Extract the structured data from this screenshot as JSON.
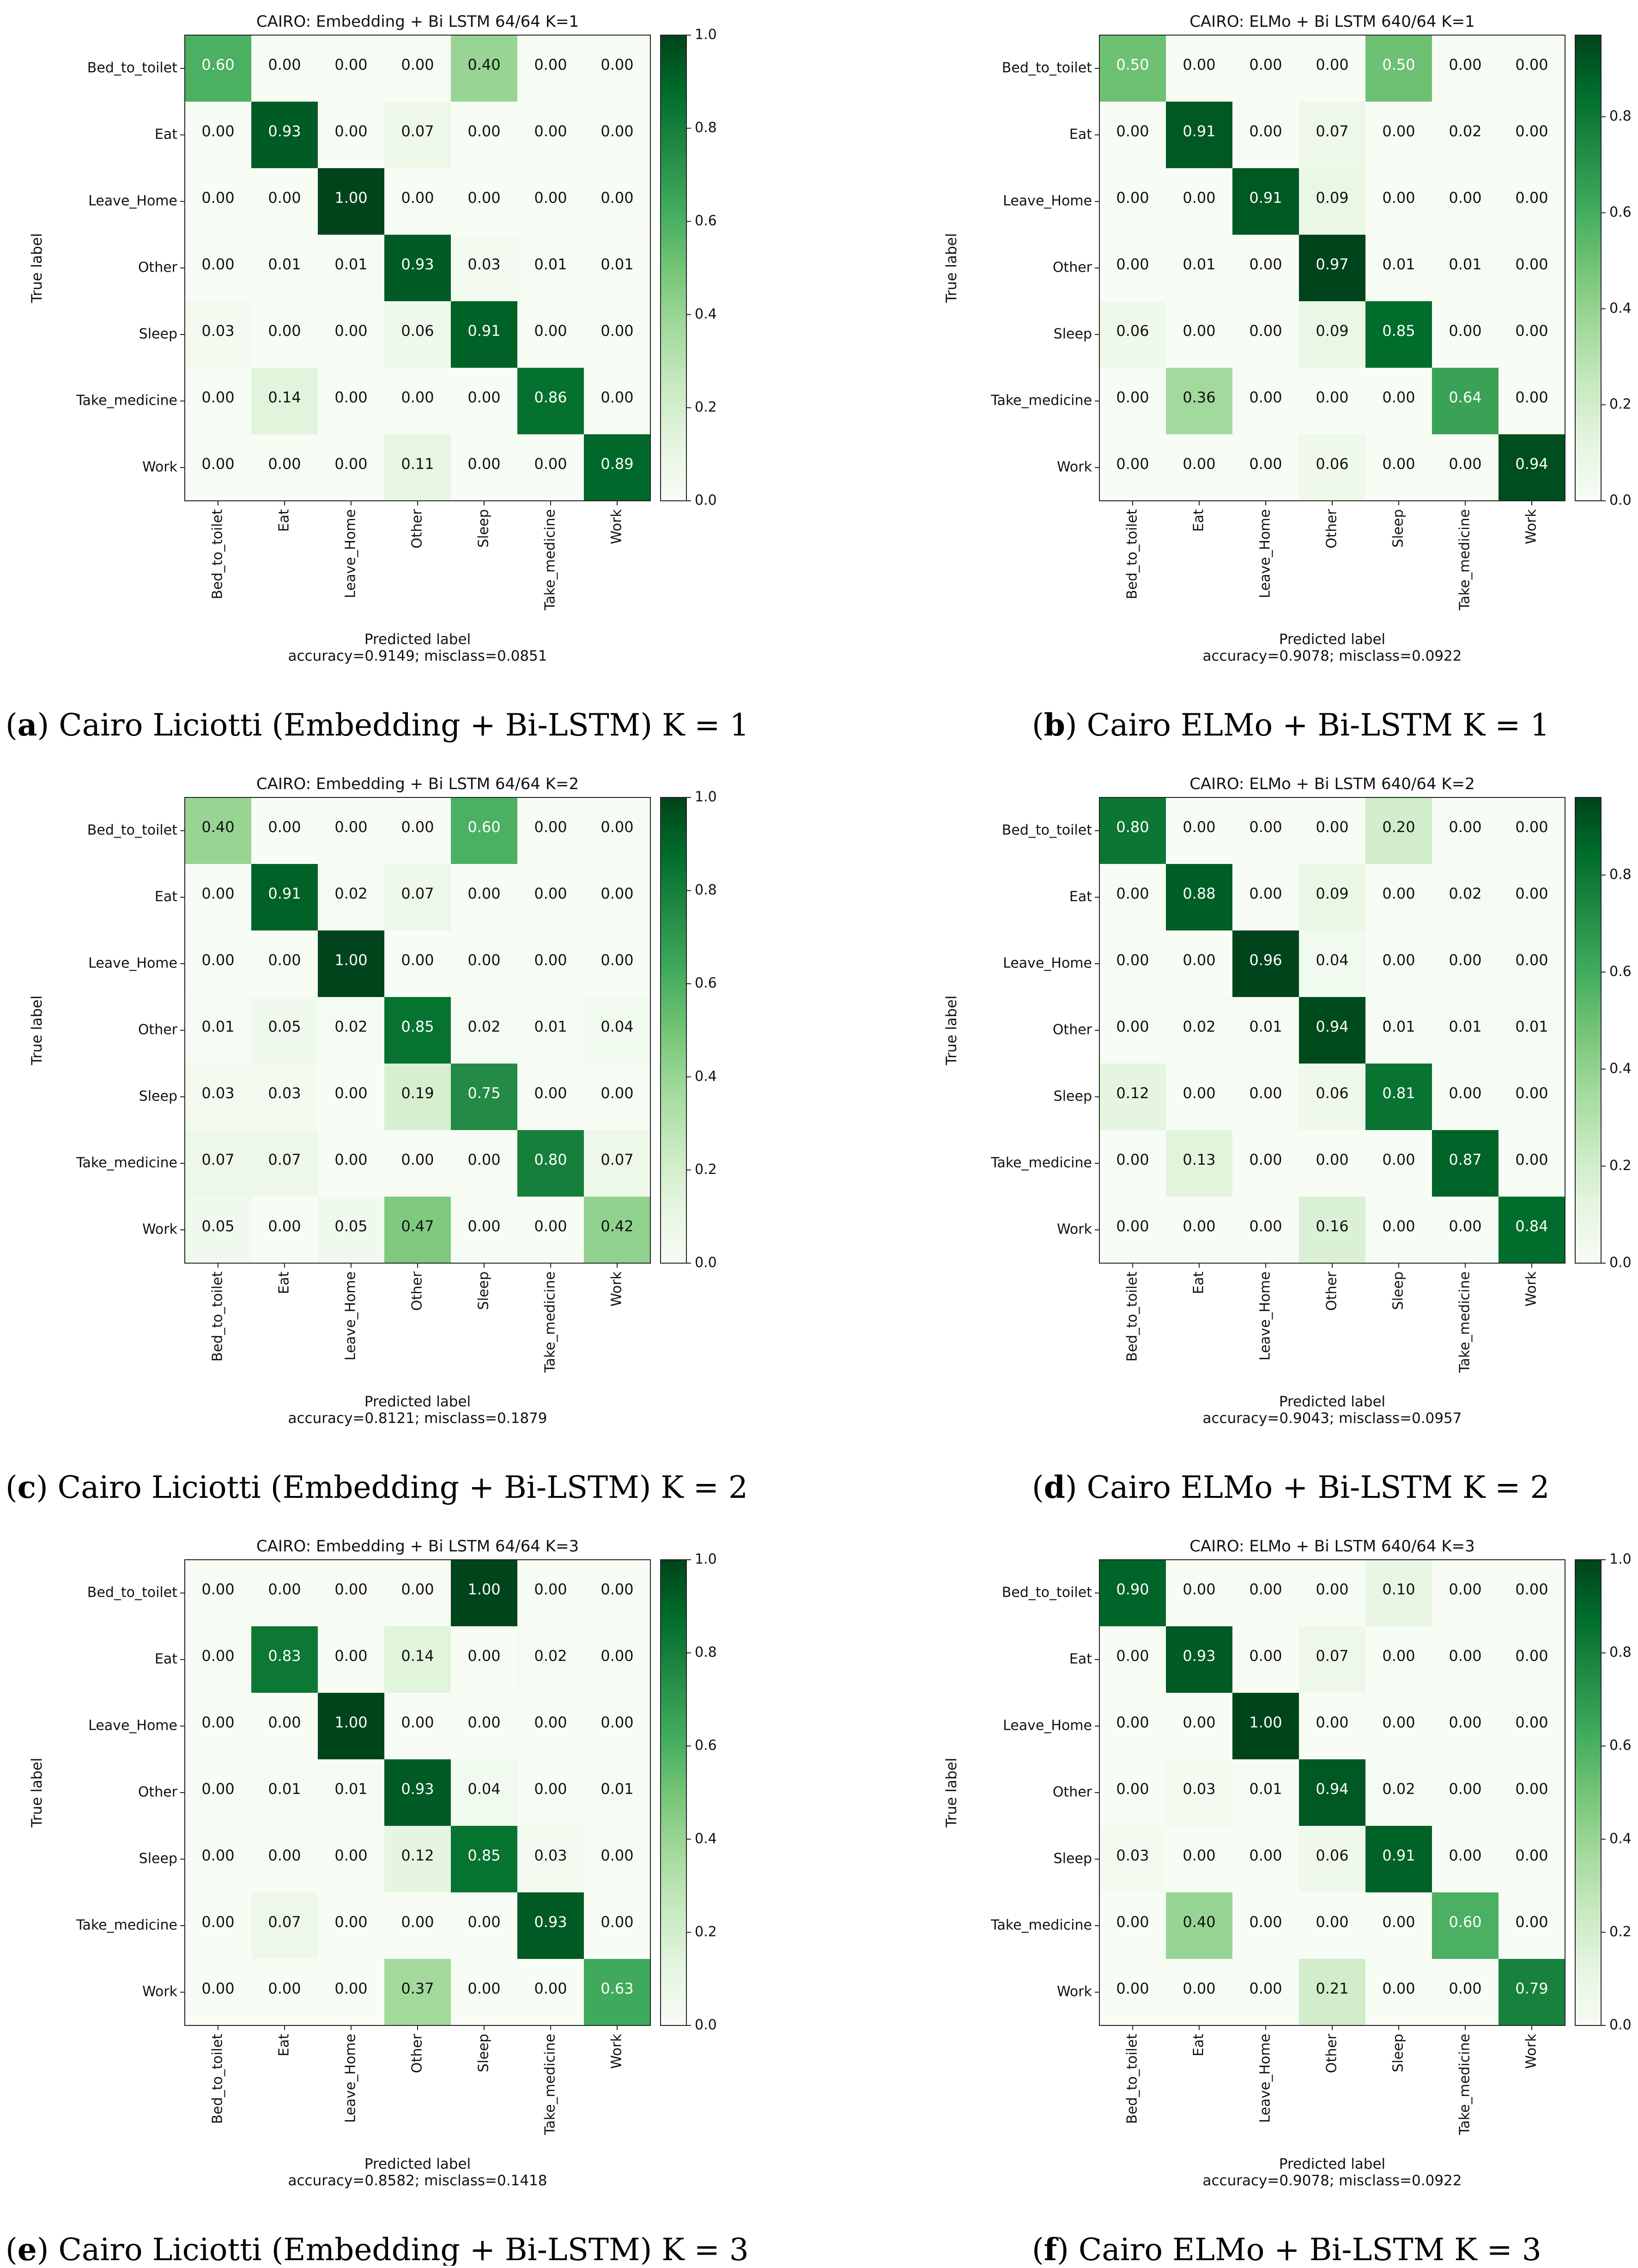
{
  "chart_data": [
    {
      "type": "heatmap",
      "title": "CAIRO: Embedding + Bi LSTM 64/64 K=1",
      "xlabel": "Predicted label",
      "ylabel": "True label",
      "footer": "accuracy=0.9149; misclass=0.0851",
      "caption_letter": "a",
      "caption_text": " Cairo Liciotti (Embedding + Bi-LSTM) K = 1",
      "labels": [
        "Bed_to_toilet",
        "Eat",
        "Leave_Home",
        "Other",
        "Sleep",
        "Take_medicine",
        "Work"
      ],
      "colorbar_range": [
        0,
        1.0
      ],
      "colorbar_ticks": [
        "0.0",
        "0.2",
        "0.4",
        "0.6",
        "0.8",
        "1.0"
      ],
      "matrix": [
        [
          0.6,
          0.0,
          0.0,
          0.0,
          0.4,
          0.0,
          0.0
        ],
        [
          0.0,
          0.93,
          0.0,
          0.07,
          0.0,
          0.0,
          0.0
        ],
        [
          0.0,
          0.0,
          1.0,
          0.0,
          0.0,
          0.0,
          0.0
        ],
        [
          0.0,
          0.01,
          0.01,
          0.93,
          0.03,
          0.01,
          0.01
        ],
        [
          0.03,
          0.0,
          0.0,
          0.06,
          0.91,
          0.0,
          0.0
        ],
        [
          0.0,
          0.14,
          0.0,
          0.0,
          0.0,
          0.86,
          0.0
        ],
        [
          0.0,
          0.0,
          0.0,
          0.11,
          0.0,
          0.0,
          0.89
        ]
      ]
    },
    {
      "type": "heatmap",
      "title": "CAIRO: ELMo + Bi LSTM 640/64 K=1",
      "xlabel": "Predicted label",
      "ylabel": "True label",
      "footer": "accuracy=0.9078; misclass=0.0922",
      "caption_letter": "b",
      "caption_text": " Cairo ELMo + Bi-LSTM K = 1",
      "labels": [
        "Bed_to_toilet",
        "Eat",
        "Leave_Home",
        "Other",
        "Sleep",
        "Take_medicine",
        "Work"
      ],
      "colorbar_range": [
        0,
        0.97
      ],
      "colorbar_ticks": [
        "0.0",
        "0.2",
        "0.4",
        "0.6",
        "0.8"
      ],
      "matrix": [
        [
          0.5,
          0.0,
          0.0,
          0.0,
          0.5,
          0.0,
          0.0
        ],
        [
          0.0,
          0.91,
          0.0,
          0.07,
          0.0,
          0.02,
          0.0
        ],
        [
          0.0,
          0.0,
          0.91,
          0.09,
          0.0,
          0.0,
          0.0
        ],
        [
          0.0,
          0.01,
          0.0,
          0.97,
          0.01,
          0.01,
          0.0
        ],
        [
          0.06,
          0.0,
          0.0,
          0.09,
          0.85,
          0.0,
          0.0
        ],
        [
          0.0,
          0.36,
          0.0,
          0.0,
          0.0,
          0.64,
          0.0
        ],
        [
          0.0,
          0.0,
          0.0,
          0.06,
          0.0,
          0.0,
          0.94
        ]
      ]
    },
    {
      "type": "heatmap",
      "title": "CAIRO: Embedding + Bi LSTM 64/64 K=2",
      "xlabel": "Predicted label",
      "ylabel": "True label",
      "footer": "accuracy=0.8121; misclass=0.1879",
      "caption_letter": "c",
      "caption_text": " Cairo Liciotti (Embedding + Bi-LSTM) K = 2",
      "labels": [
        "Bed_to_toilet",
        "Eat",
        "Leave_Home",
        "Other",
        "Sleep",
        "Take_medicine",
        "Work"
      ],
      "colorbar_range": [
        0,
        1.0
      ],
      "colorbar_ticks": [
        "0.0",
        "0.2",
        "0.4",
        "0.6",
        "0.8",
        "1.0"
      ],
      "matrix": [
        [
          0.4,
          0.0,
          0.0,
          0.0,
          0.6,
          0.0,
          0.0
        ],
        [
          0.0,
          0.91,
          0.02,
          0.07,
          0.0,
          0.0,
          0.0
        ],
        [
          0.0,
          0.0,
          1.0,
          0.0,
          0.0,
          0.0,
          0.0
        ],
        [
          0.01,
          0.05,
          0.02,
          0.85,
          0.02,
          0.01,
          0.04
        ],
        [
          0.03,
          0.03,
          0.0,
          0.19,
          0.75,
          0.0,
          0.0
        ],
        [
          0.07,
          0.07,
          0.0,
          0.0,
          0.0,
          0.8,
          0.07
        ],
        [
          0.05,
          0.0,
          0.05,
          0.47,
          0.0,
          0.0,
          0.42
        ]
      ]
    },
    {
      "type": "heatmap",
      "title": "CAIRO: ELMo + Bi LSTM 640/64 K=2",
      "xlabel": "Predicted label",
      "ylabel": "True label",
      "footer": "accuracy=0.9043; misclass=0.0957",
      "caption_letter": "d",
      "caption_text": " Cairo ELMo + Bi-LSTM K = 2",
      "labels": [
        "Bed_to_toilet",
        "Eat",
        "Leave_Home",
        "Other",
        "Sleep",
        "Take_medicine",
        "Work"
      ],
      "colorbar_range": [
        0,
        0.96
      ],
      "colorbar_ticks": [
        "0.0",
        "0.2",
        "0.4",
        "0.6",
        "0.8"
      ],
      "matrix": [
        [
          0.8,
          0.0,
          0.0,
          0.0,
          0.2,
          0.0,
          0.0
        ],
        [
          0.0,
          0.88,
          0.0,
          0.09,
          0.0,
          0.02,
          0.0
        ],
        [
          0.0,
          0.0,
          0.96,
          0.04,
          0.0,
          0.0,
          0.0
        ],
        [
          0.0,
          0.02,
          0.01,
          0.94,
          0.01,
          0.01,
          0.01
        ],
        [
          0.12,
          0.0,
          0.0,
          0.06,
          0.81,
          0.0,
          0.0
        ],
        [
          0.0,
          0.13,
          0.0,
          0.0,
          0.0,
          0.87,
          0.0
        ],
        [
          0.0,
          0.0,
          0.0,
          0.16,
          0.0,
          0.0,
          0.84
        ]
      ]
    },
    {
      "type": "heatmap",
      "title": "CAIRO: Embedding + Bi LSTM 64/64 K=3",
      "xlabel": "Predicted label",
      "ylabel": "True label",
      "footer": "accuracy=0.8582; misclass=0.1418",
      "caption_letter": "e",
      "caption_text": " Cairo Liciotti (Embedding + Bi-LSTM) K = 3",
      "labels": [
        "Bed_to_toilet",
        "Eat",
        "Leave_Home",
        "Other",
        "Sleep",
        "Take_medicine",
        "Work"
      ],
      "colorbar_range": [
        0,
        1.0
      ],
      "colorbar_ticks": [
        "0.0",
        "0.2",
        "0.4",
        "0.6",
        "0.8",
        "1.0"
      ],
      "matrix": [
        [
          0.0,
          0.0,
          0.0,
          0.0,
          1.0,
          0.0,
          0.0
        ],
        [
          0.0,
          0.83,
          0.0,
          0.14,
          0.0,
          0.02,
          0.0
        ],
        [
          0.0,
          0.0,
          1.0,
          0.0,
          0.0,
          0.0,
          0.0
        ],
        [
          0.0,
          0.01,
          0.01,
          0.93,
          0.04,
          0.0,
          0.01
        ],
        [
          0.0,
          0.0,
          0.0,
          0.12,
          0.85,
          0.03,
          0.0
        ],
        [
          0.0,
          0.07,
          0.0,
          0.0,
          0.0,
          0.93,
          0.0
        ],
        [
          0.0,
          0.0,
          0.0,
          0.37,
          0.0,
          0.0,
          0.63
        ]
      ]
    },
    {
      "type": "heatmap",
      "title": "CAIRO: ELMo + Bi LSTM 640/64 K=3",
      "xlabel": "Predicted label",
      "ylabel": "True label",
      "footer": "accuracy=0.9078; misclass=0.0922",
      "caption_letter": "f",
      "caption_text": " Cairo ELMo + Bi-LSTM K = 3",
      "labels": [
        "Bed_to_toilet",
        "Eat",
        "Leave_Home",
        "Other",
        "Sleep",
        "Take_medicine",
        "Work"
      ],
      "colorbar_range": [
        0,
        1.0
      ],
      "colorbar_ticks": [
        "0.0",
        "0.2",
        "0.4",
        "0.6",
        "0.8",
        "1.0"
      ],
      "matrix": [
        [
          0.9,
          0.0,
          0.0,
          0.0,
          0.1,
          0.0,
          0.0
        ],
        [
          0.0,
          0.93,
          0.0,
          0.07,
          0.0,
          0.0,
          0.0
        ],
        [
          0.0,
          0.0,
          1.0,
          0.0,
          0.0,
          0.0,
          0.0
        ],
        [
          0.0,
          0.03,
          0.01,
          0.94,
          0.02,
          0.0,
          0.0
        ],
        [
          0.03,
          0.0,
          0.0,
          0.06,
          0.91,
          0.0,
          0.0
        ],
        [
          0.0,
          0.4,
          0.0,
          0.0,
          0.0,
          0.6,
          0.0
        ],
        [
          0.0,
          0.0,
          0.0,
          0.21,
          0.0,
          0.0,
          0.79
        ]
      ]
    }
  ]
}
